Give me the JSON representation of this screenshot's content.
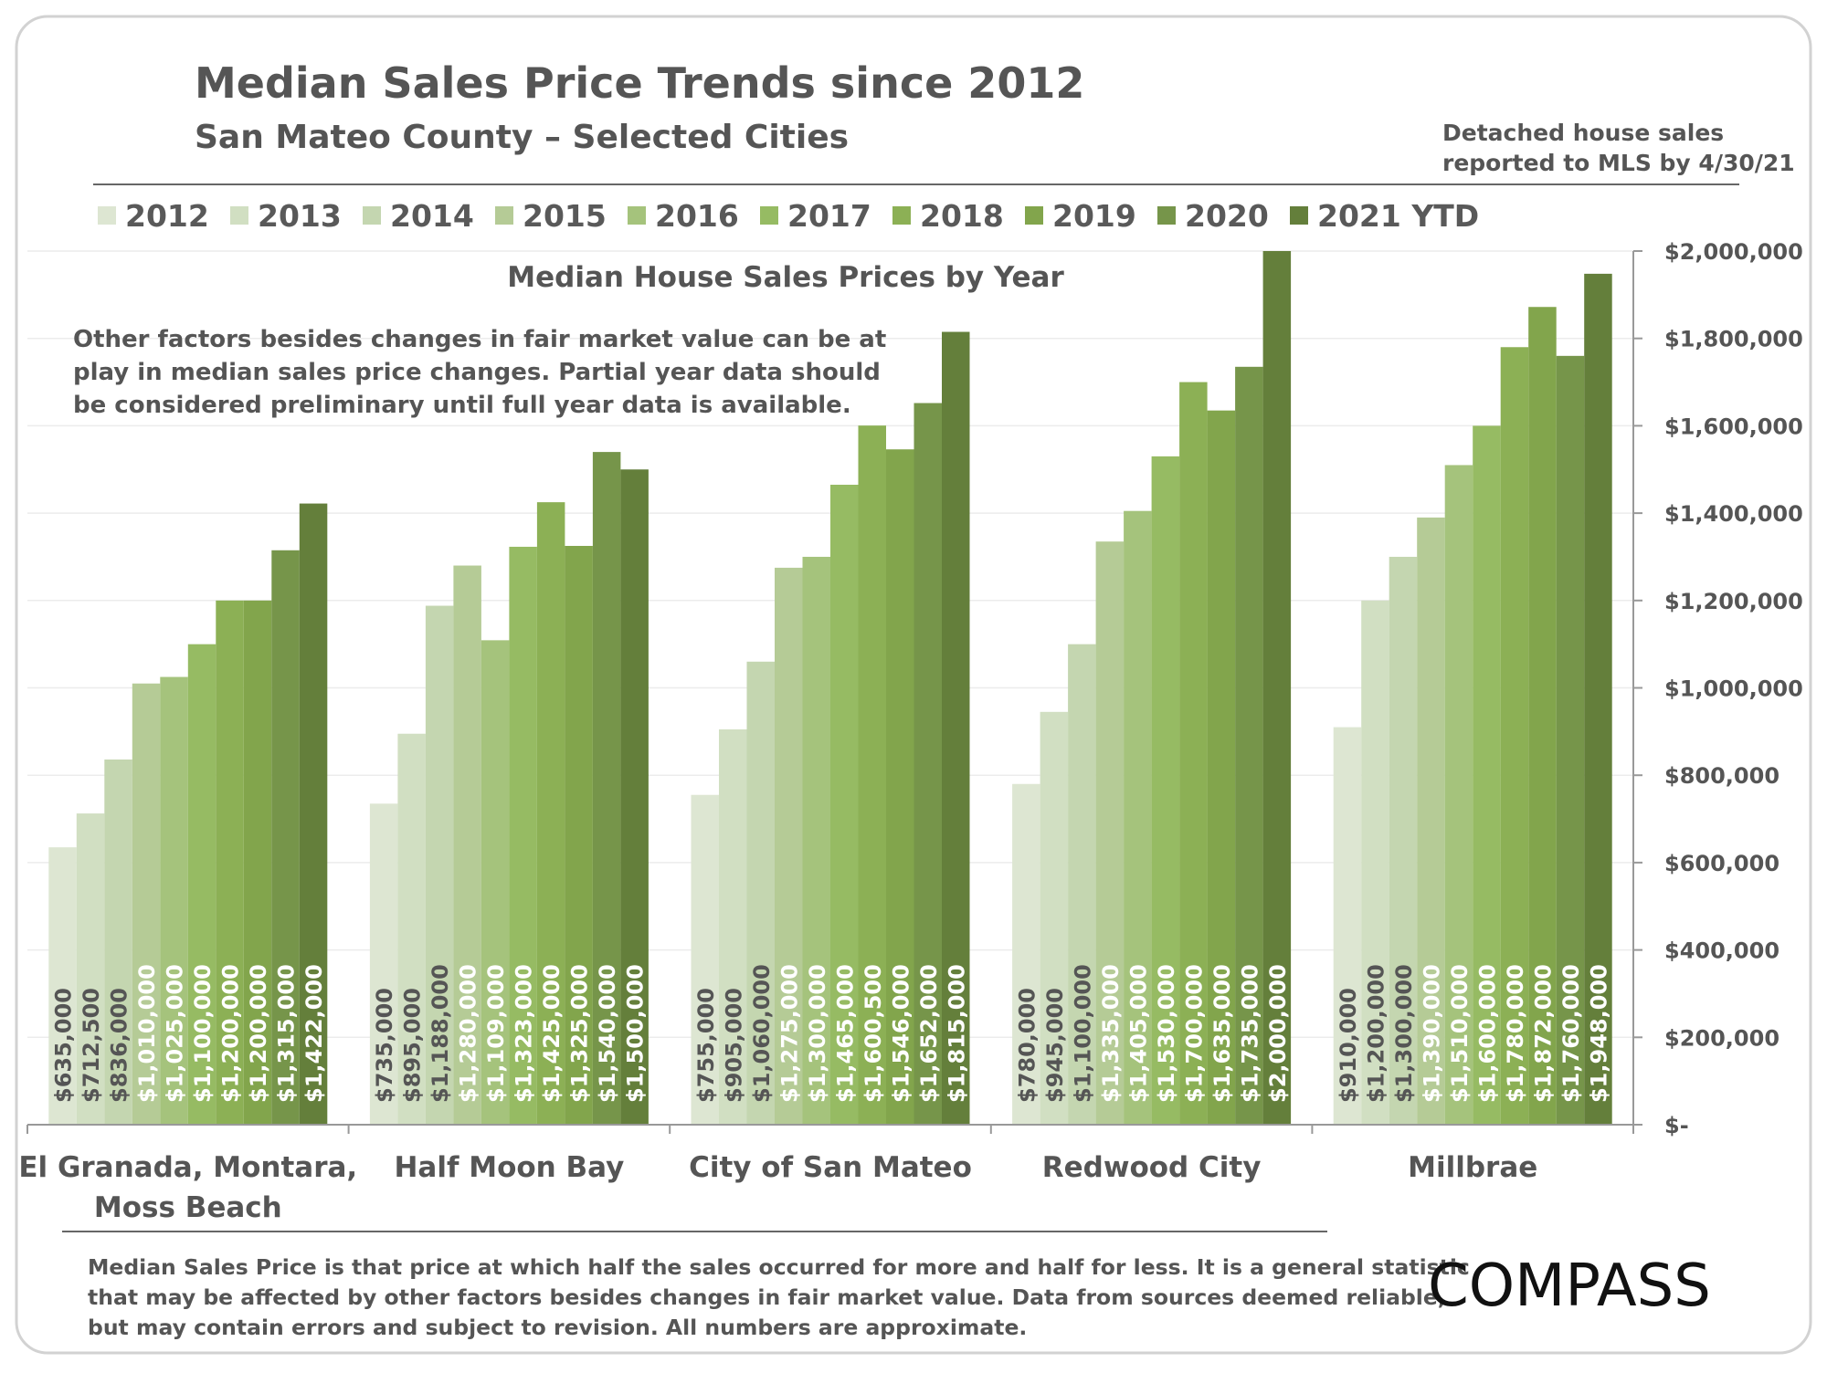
{
  "header": {
    "title": "Median Sales Price Trends since 2012",
    "subtitle": "San Mateo County – Selected Cities",
    "note_line1": "Detached house sales",
    "note_line2": "reported to MLS by 4/30/21"
  },
  "chart_data": {
    "type": "bar",
    "title": "Median House Sales Prices by Year",
    "categories": [
      "El Granada, Montara, Moss Beach",
      "Half Moon Bay",
      "City of San Mateo",
      "Redwood City",
      "Millbrae"
    ],
    "category_lines": [
      [
        "El Granada, Montara,",
        "Moss Beach"
      ],
      [
        "Half Moon Bay"
      ],
      [
        "City of San Mateo"
      ],
      [
        "Redwood City"
      ],
      [
        "Millbrae"
      ]
    ],
    "series": [
      {
        "name": "2012",
        "color": "#dde6d2",
        "values": [
          635000,
          735000,
          755000,
          780000,
          910000
        ],
        "labels": [
          "$635,000",
          "$735,000",
          "$755,000",
          "$780,000",
          "$910,000"
        ]
      },
      {
        "name": "2013",
        "color": "#d1dfc2",
        "values": [
          712500,
          895000,
          905000,
          945000,
          1200000
        ],
        "labels": [
          "$712,500",
          "$895,000",
          "$905,000",
          "$945,000",
          "$1,200,000"
        ]
      },
      {
        "name": "2014",
        "color": "#c4d6b0",
        "values": [
          836000,
          1188000,
          1060000,
          1100000,
          1300000
        ],
        "labels": [
          "$836,000",
          "$1,188,000",
          "$1,060,000",
          "$1,100,000",
          "$1,300,000"
        ]
      },
      {
        "name": "2015",
        "color": "#b5cb96",
        "values": [
          1010000,
          1280000,
          1275000,
          1335000,
          1390000
        ],
        "labels": [
          "$1,010,000",
          "$1,280,000",
          "$1,275,000",
          "$1,335,000",
          "$1,390,000"
        ]
      },
      {
        "name": "2016",
        "color": "#a5c37c",
        "values": [
          1025000,
          1109000,
          1300000,
          1405000,
          1510000
        ],
        "labels": [
          "$1,025,000",
          "$1,109,000",
          "$1,300,000",
          "$1,405,000",
          "$1,510,000"
        ]
      },
      {
        "name": "2017",
        "color": "#96bb63",
        "values": [
          1100000,
          1323000,
          1465000,
          1530000,
          1600000
        ],
        "labels": [
          "$1,100,000",
          "$1,323,000",
          "$1,465,000",
          "$1,530,000",
          "$1,600,000"
        ]
      },
      {
        "name": "2018",
        "color": "#8cb055",
        "values": [
          1200000,
          1425000,
          1600500,
          1700000,
          1780000
        ],
        "labels": [
          "$1,200,000",
          "$1,425,000",
          "$1,600,500",
          "$1,700,000",
          "$1,780,000"
        ]
      },
      {
        "name": "2019",
        "color": "#82a54c",
        "values": [
          1200000,
          1325000,
          1546000,
          1635000,
          1872000
        ],
        "labels": [
          "$1,200,000",
          "$1,325,000",
          "$1,546,000",
          "$1,635,000",
          "$1,872,000"
        ]
      },
      {
        "name": "2020",
        "color": "#76954a",
        "values": [
          1315000,
          1540000,
          1652000,
          1735000,
          1760000
        ],
        "labels": [
          "$1,315,000",
          "$1,540,000",
          "$1,652,000",
          "$1,735,000",
          "$1,760,000"
        ]
      },
      {
        "name": "2021 YTD",
        "color": "#647f3b",
        "values": [
          1422000,
          1500000,
          1815000,
          2000000,
          1948000
        ],
        "labels": [
          "$1,422,000",
          "$1,500,000",
          "$1,815,000",
          "$2,000,000",
          "$1,948,000"
        ]
      }
    ],
    "ylim": [
      0,
      2000000
    ],
    "y_ticks": [
      0,
      200000,
      400000,
      600000,
      800000,
      1000000,
      1200000,
      1400000,
      1600000,
      1800000,
      2000000
    ],
    "y_tick_labels": [
      "$-",
      "$200,000",
      "$400,000",
      "$600,000",
      "$800,000",
      "$1,000,000",
      "$1,200,000",
      "$1,400,000",
      "$1,600,000",
      "$1,800,000",
      "$2,000,000"
    ],
    "y_axis_side": "right",
    "grid": true,
    "legend_position": "top",
    "annotation": [
      "Other factors besides changes in fair market value can be at",
      "play in median sales price changes. Partial year data should",
      "be considered preliminary until full year data is available."
    ]
  },
  "footer": {
    "lines": [
      "Median Sales Price is that price at which half the sales occurred for more and half for less. It is a general statistic",
      "that may be affected by other factors besides changes in fair market value. Data from sources deemed reliable,",
      "but may contain errors and subject to revision.  All numbers are approximate."
    ],
    "logo": "COMPASS"
  }
}
